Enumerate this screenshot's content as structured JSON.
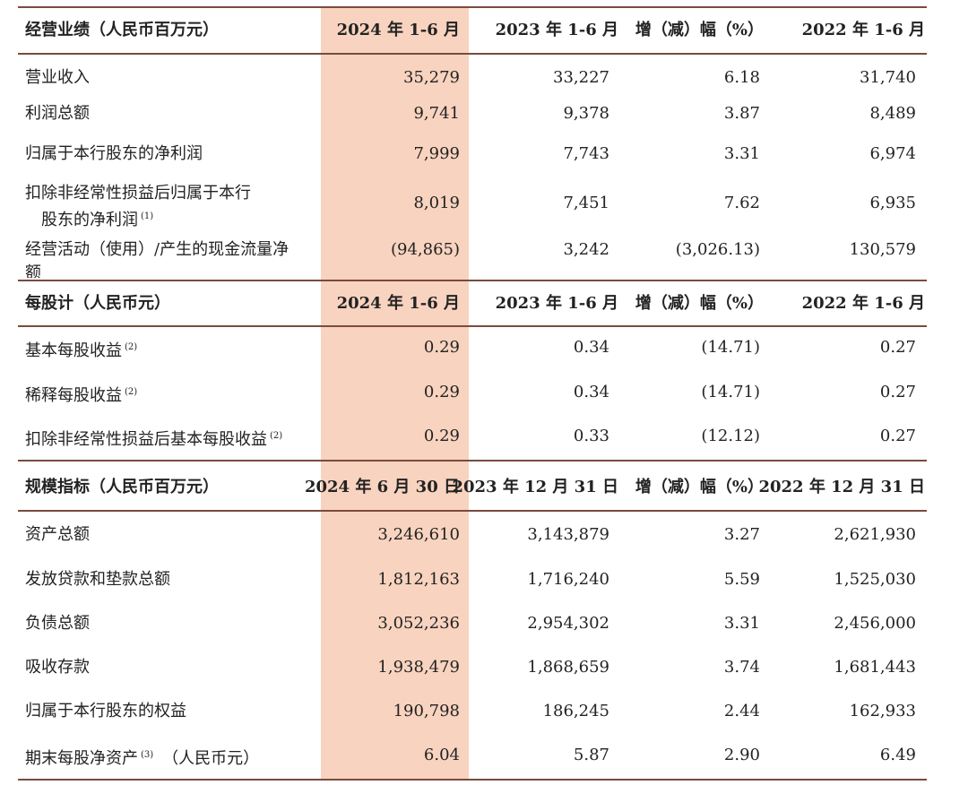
{
  "sections": [
    {
      "header": [
        "经营业绩（人民币百万元）",
        "2024 年 1-6 月",
        "2023 年 1-6 月",
        "增（减）幅（%）",
        "2022 年 1-6 月"
      ],
      "rows": [
        {
          "label": [
            "营业收入"
          ],
          "values": [
            "35,279",
            "33,227",
            "6.18",
            "31,740"
          ]
        },
        {
          "label": [
            "利润总额"
          ],
          "values": [
            "9,741",
            "9,378",
            "3.87",
            "8,489"
          ]
        },
        {
          "label": [
            "归属于本行股东的净利润"
          ],
          "values": [
            "7,999",
            "7,743",
            "3.31",
            "6,974"
          ]
        },
        {
          "label": [
            "扣除非经常性损益后归属于本行",
            "股东的净利润"
          ],
          "note": "(1)",
          "values": [
            "8,019",
            "7,451",
            "7.62",
            "6,935"
          ]
        },
        {
          "label": [
            "经营活动（使用）/产生的现金流量净",
            "额"
          ],
          "values": [
            "(94,865)",
            "3,242",
            "(3,026.13)",
            "130,579"
          ]
        }
      ]
    },
    {
      "header": [
        "每股计（人民币元）",
        "2024 年 1-6 月",
        "2023 年 1-6 月",
        "增（减）幅（%）",
        "2022 年 1-6 月"
      ],
      "rows": [
        {
          "label": [
            "基本每股收益"
          ],
          "note": "(2)",
          "values": [
            "0.29",
            "0.34",
            "(14.71)",
            "0.27"
          ]
        },
        {
          "label": [
            "稀释每股收益"
          ],
          "note": "(2)",
          "values": [
            "0.29",
            "0.34",
            "(14.71)",
            "0.27"
          ]
        },
        {
          "label": [
            "扣除非经常性损益后基本每股收益"
          ],
          "note": "(2)",
          "values": [
            "0.29",
            "0.33",
            "(12.12)",
            "0.27"
          ]
        }
      ]
    },
    {
      "header": [
        "规模指标（人民币百万元）",
        "2024 年 6 月 30 日",
        "2023 年 12 月 31 日",
        "增（减）幅（%）",
        "2022 年 12 月 31 日"
      ],
      "rows": [
        {
          "label": [
            "资产总额"
          ],
          "values": [
            "3,246,610",
            "3,143,879",
            "3.27",
            "2,621,930"
          ]
        },
        {
          "label": [
            "发放贷款和垫款总额"
          ],
          "values": [
            "1,812,163",
            "1,716,240",
            "5.59",
            "1,525,030"
          ]
        },
        {
          "label": [
            "负债总额"
          ],
          "values": [
            "3,052,236",
            "2,954,302",
            "3.31",
            "2,456,000"
          ]
        },
        {
          "label": [
            "吸收存款"
          ],
          "values": [
            "1,938,479",
            "1,868,659",
            "3.74",
            "1,681,443"
          ]
        },
        {
          "label": [
            "归属于本行股东的权益"
          ],
          "values": [
            "190,798",
            "186,245",
            "2.44",
            "162,933"
          ]
        },
        {
          "label": [
            "期末每股净资产"
          ],
          "note": "(3)",
          "suffix": "（人民币元）",
          "values": [
            "6.04",
            "5.87",
            "2.90",
            "6.49"
          ]
        }
      ]
    }
  ]
}
